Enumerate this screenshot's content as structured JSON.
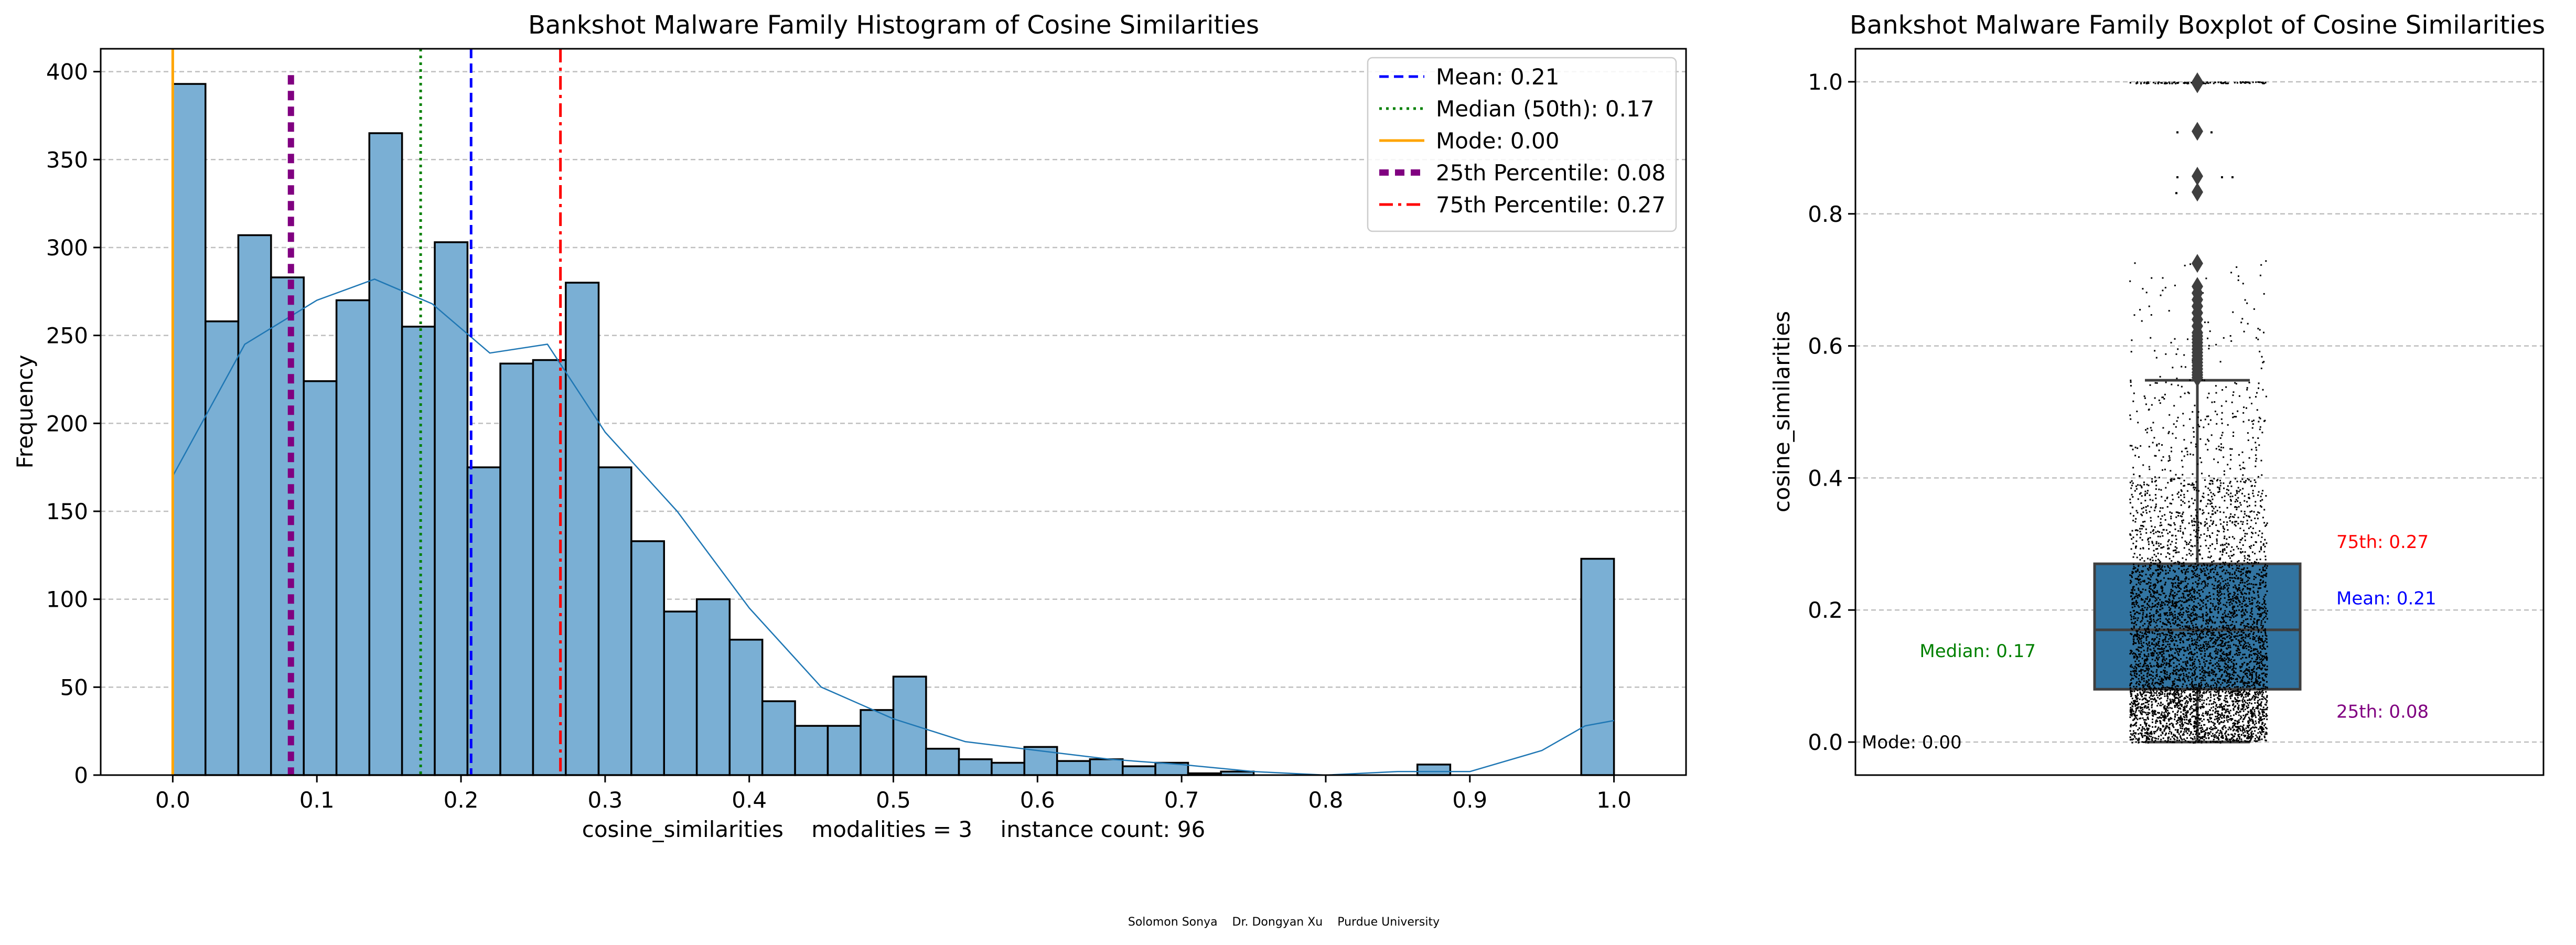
{
  "footer": "Solomon Sonya    Dr. Dongyan Xu    Purdue University",
  "chart_data": [
    {
      "type": "bar",
      "title": "Bankshot Malware Family Histogram of Cosine Similarities",
      "xlabel": "cosine_similarities    modalities = 3    instance count: 96",
      "ylabel": "Frequency",
      "xlim": [
        -0.05,
        1.05
      ],
      "ylim": [
        0,
        413
      ],
      "xticks": [
        0.0,
        0.1,
        0.2,
        0.3,
        0.4,
        0.5,
        0.6,
        0.7,
        0.8,
        0.9,
        1.0
      ],
      "xtick_labels": [
        "0.0",
        "0.1",
        "0.2",
        "0.3",
        "0.4",
        "0.5",
        "0.6",
        "0.7",
        "0.8",
        "0.9",
        "1.0"
      ],
      "yticks": [
        0,
        50,
        100,
        150,
        200,
        250,
        300,
        350,
        400
      ],
      "ytick_labels": [
        "0",
        "50",
        "100",
        "150",
        "200",
        "250",
        "300",
        "350",
        "400"
      ],
      "grid": "y-dashed",
      "bar_color": "#7aafd4",
      "bin_edges": [
        0.0,
        0.0227,
        0.0455,
        0.0682,
        0.0909,
        0.1136,
        0.1364,
        0.1591,
        0.1818,
        0.2045,
        0.2273,
        0.25,
        0.2727,
        0.2955,
        0.3182,
        0.3409,
        0.3636,
        0.3864,
        0.4091,
        0.4318,
        0.4545,
        0.4773,
        0.5,
        0.5227,
        0.5455,
        0.5682,
        0.5909,
        0.6136,
        0.6364,
        0.6591,
        0.6818,
        0.7045,
        0.7273,
        0.75,
        0.7727,
        0.7955,
        0.8182,
        0.8409,
        0.8636,
        0.8864,
        0.9091,
        0.9318,
        0.9545,
        0.9773,
        1.0
      ],
      "counts": [
        393,
        258,
        307,
        283,
        224,
        270,
        365,
        255,
        303,
        175,
        234,
        236,
        280,
        175,
        133,
        93,
        100,
        77,
        42,
        28,
        28,
        37,
        56,
        15,
        9,
        7,
        16,
        8,
        9,
        5,
        7,
        1,
        2,
        0,
        0,
        0,
        0,
        0,
        6,
        0,
        0,
        0,
        0,
        123
      ],
      "kde": {
        "color": "#1f77b4",
        "x": [
          0.0,
          0.02,
          0.05,
          0.1,
          0.14,
          0.18,
          0.22,
          0.26,
          0.3,
          0.35,
          0.4,
          0.45,
          0.5,
          0.55,
          0.6,
          0.65,
          0.7,
          0.75,
          0.8,
          0.85,
          0.9,
          0.95,
          0.98,
          1.0
        ],
        "y": [
          170,
          200,
          245,
          270,
          282,
          268,
          240,
          245,
          195,
          150,
          95,
          50,
          32,
          19,
          14,
          9,
          6,
          2,
          0,
          2,
          2,
          14,
          28,
          31
        ]
      },
      "reference_lines": [
        {
          "label": "Mean: 0.21",
          "value": 0.207,
          "color": "#0000ff",
          "style": "dashed"
        },
        {
          "label": "Median (50th): 0.17",
          "value": 0.172,
          "color": "#008000",
          "style": "dotted"
        },
        {
          "label": "Mode: 0.00",
          "value": 0.0,
          "color": "#ffa500",
          "style": "solid"
        },
        {
          "label": "25th Percentile: 0.08",
          "value": 0.082,
          "color": "#800080",
          "style": "thick-dashed"
        },
        {
          "label": "75th Percentile: 0.27",
          "value": 0.269,
          "color": "#ff0000",
          "style": "dashdot"
        }
      ],
      "legend": "top-right"
    },
    {
      "type": "box",
      "title": "Bankshot Malware Family Boxplot of Cosine Similarities",
      "ylabel": "cosine_similarities",
      "ylim": [
        -0.05,
        1.05
      ],
      "yticks": [
        0.0,
        0.2,
        0.4,
        0.6,
        0.8,
        1.0
      ],
      "ytick_labels": [
        "0.0",
        "0.2",
        "0.4",
        "0.6",
        "0.8",
        "1.0"
      ],
      "grid": "y-dashed",
      "box_color": "#3274a1",
      "q1": 0.08,
      "median": 0.17,
      "q3": 0.27,
      "whisker_low": 0.0,
      "whisker_high": 0.548,
      "outliers": [
        0.552,
        0.556,
        0.56,
        0.565,
        0.57,
        0.575,
        0.58,
        0.585,
        0.59,
        0.595,
        0.6,
        0.605,
        0.61,
        0.615,
        0.62,
        0.63,
        0.64,
        0.65,
        0.66,
        0.67,
        0.68,
        0.69,
        0.725,
        0.833,
        0.857,
        0.925,
        0.997,
        1.0
      ],
      "annotations": [
        {
          "text": "75th: 0.27",
          "value": 0.27,
          "side": "right",
          "color": "#ff0000"
        },
        {
          "text": "Mean: 0.21",
          "value": 0.21,
          "side": "right",
          "color": "#0000ff"
        },
        {
          "text": "Median: 0.17",
          "value": 0.17,
          "side": "left",
          "color": "#008000"
        },
        {
          "text": "25th: 0.08",
          "value": 0.08,
          "side": "right",
          "color": "#800080"
        },
        {
          "text": "Mode: 0.00",
          "value": 0.0,
          "side": "far-left",
          "color": "#000000"
        }
      ]
    }
  ]
}
